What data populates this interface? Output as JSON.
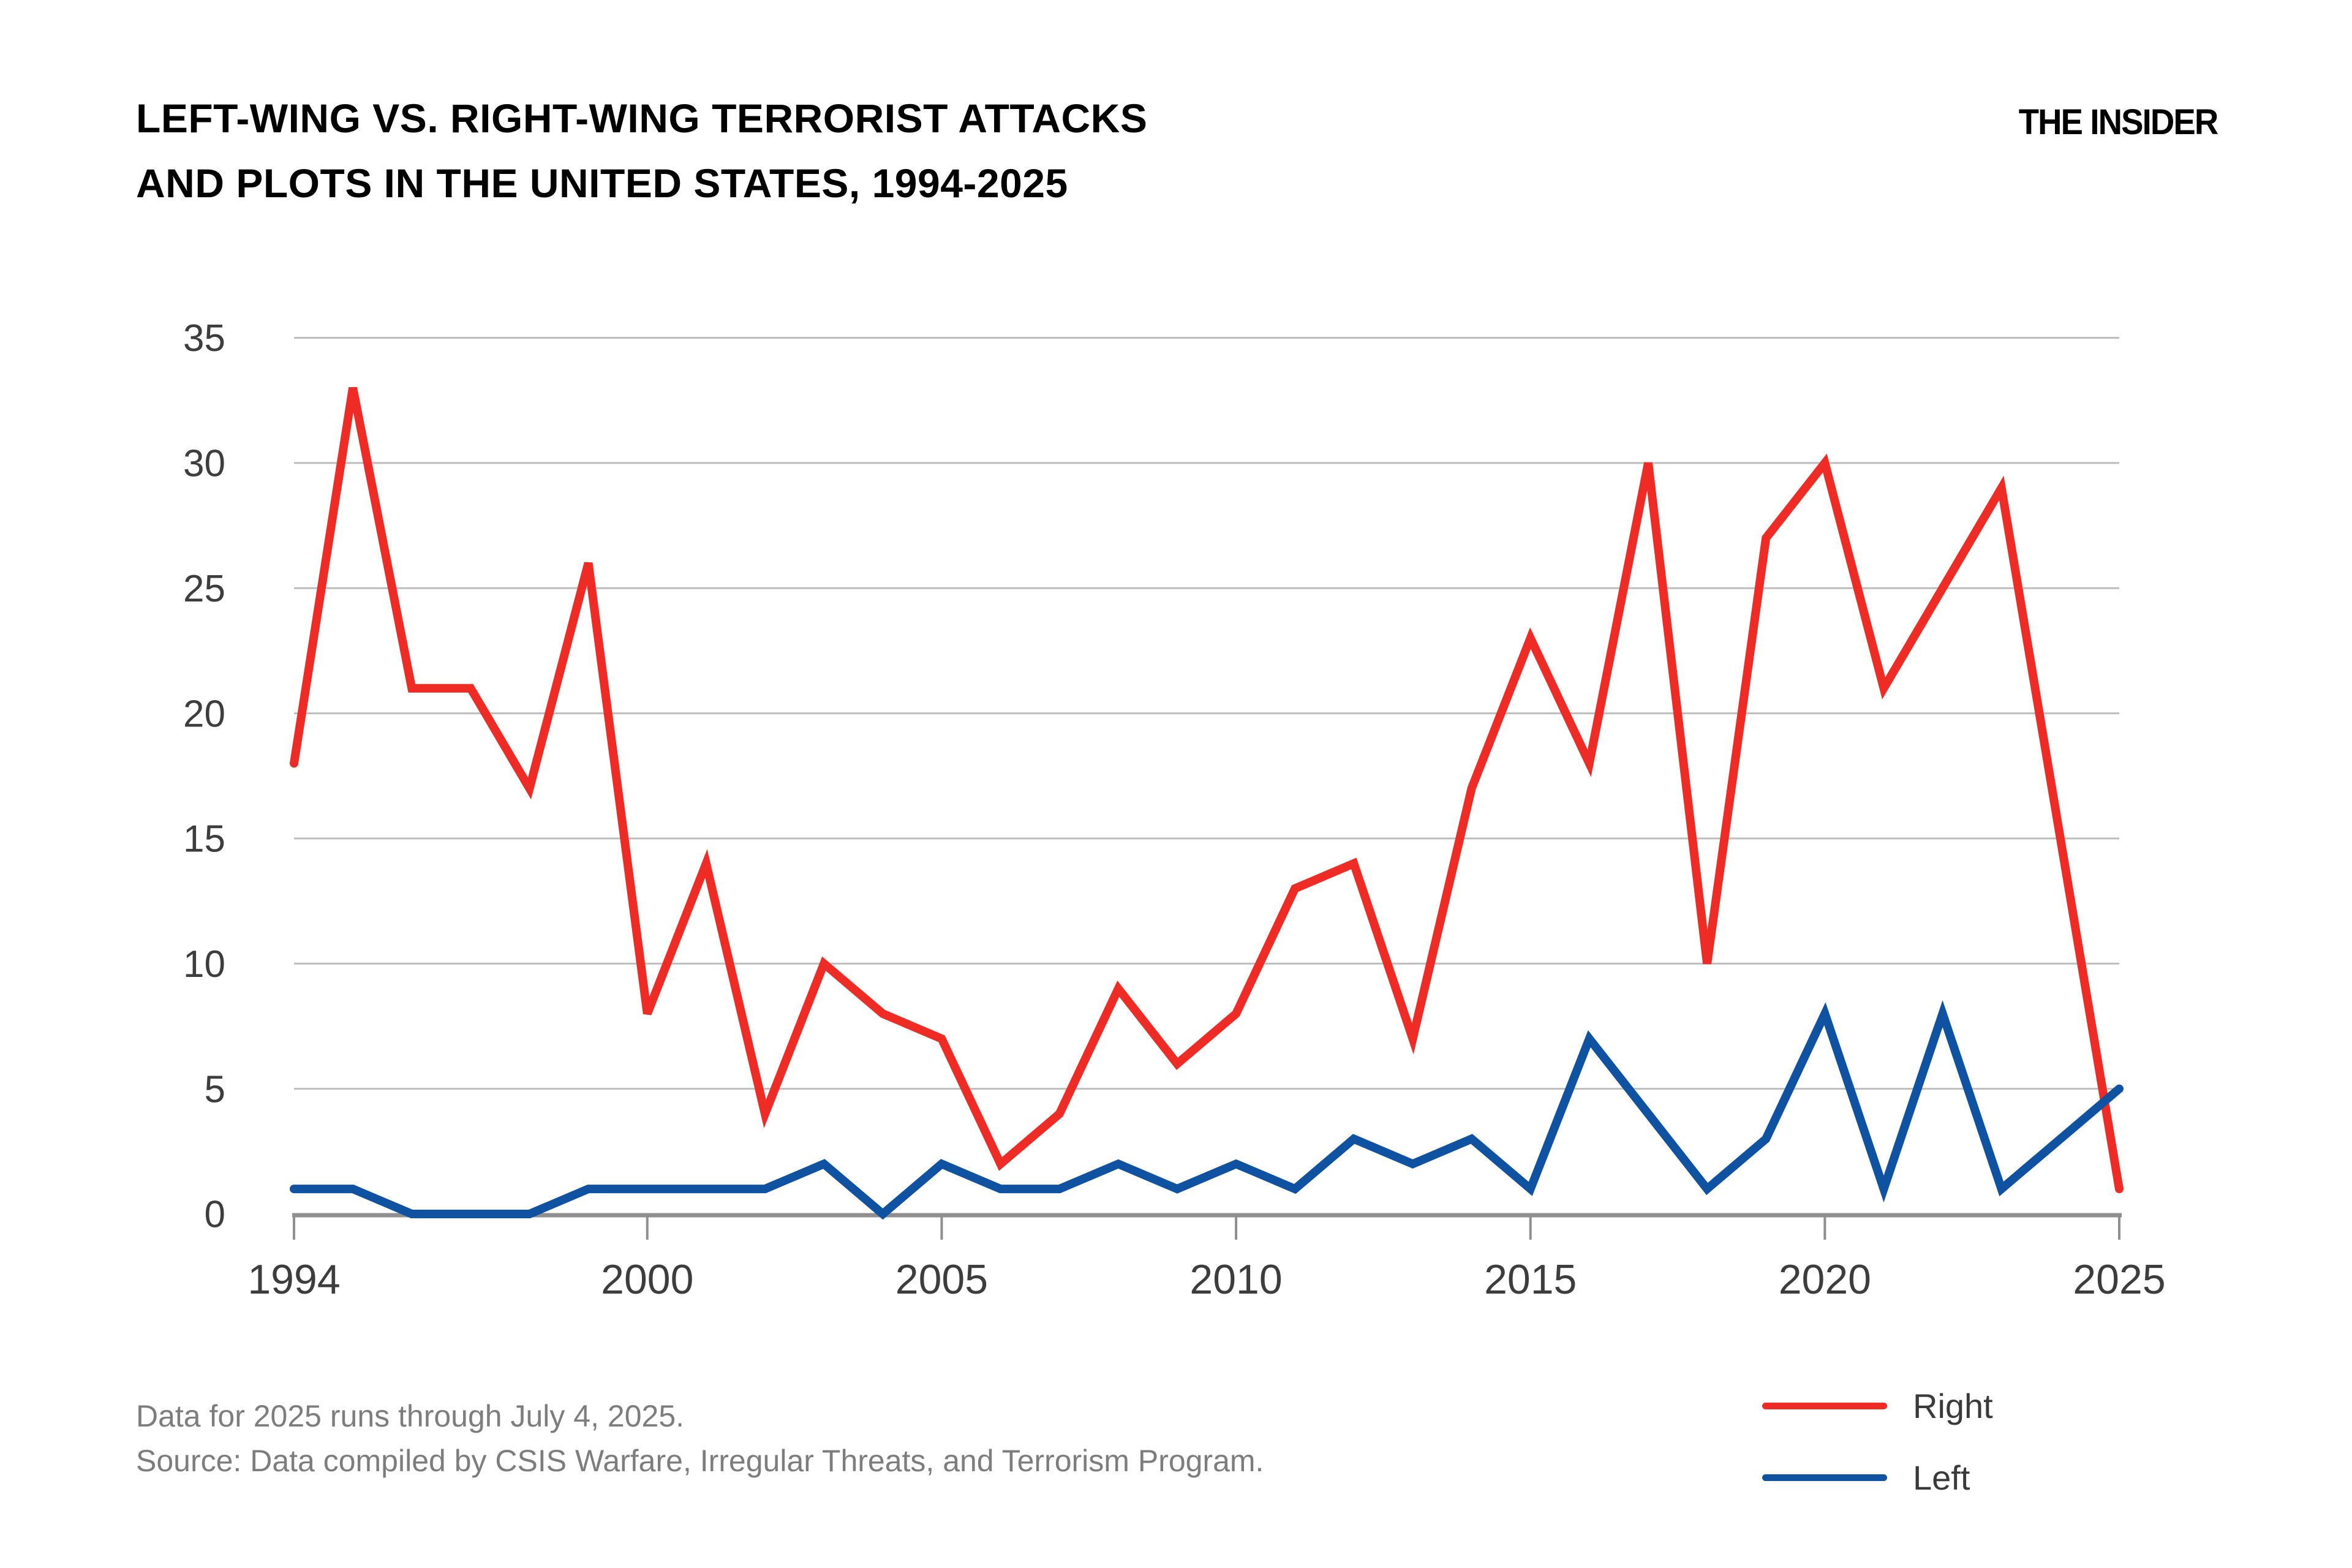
{
  "header": {
    "title_line1": "LEFT-WING VS. RIGHT-WING TERRORIST ATTACKS",
    "title_line2": "AND PLOTS IN THE UNITED STATES, 1994-2025",
    "brand": "THE INSIDER"
  },
  "chart_data": {
    "type": "line",
    "title": "Left-wing vs. right-wing terrorist attacks and plots in the United States, 1994-2025",
    "x": [
      1994,
      1995,
      1996,
      1997,
      1998,
      1999,
      2000,
      2001,
      2002,
      2003,
      2004,
      2005,
      2006,
      2007,
      2008,
      2009,
      2010,
      2011,
      2012,
      2013,
      2014,
      2015,
      2016,
      2017,
      2018,
      2019,
      2020,
      2021,
      2022,
      2023,
      2024,
      2025
    ],
    "series": [
      {
        "name": "Right",
        "color": "#ee2b24",
        "values": [
          18,
          33,
          21,
          21,
          17,
          26,
          8,
          14,
          4,
          10,
          8,
          7,
          2,
          4,
          9,
          6,
          8,
          13,
          14,
          7,
          17,
          23,
          18,
          30,
          10,
          27,
          30,
          21,
          25,
          29,
          15,
          1
        ]
      },
      {
        "name": "Left",
        "color": "#0e52a1",
        "values": [
          1,
          1,
          0,
          0,
          0,
          1,
          1,
          1,
          1,
          2,
          0,
          2,
          1,
          1,
          2,
          1,
          2,
          1,
          3,
          2,
          3,
          1,
          7,
          4,
          1,
          3,
          8,
          1,
          8,
          1,
          3,
          5
        ]
      }
    ],
    "xlabel": "",
    "ylabel": "",
    "ylim": [
      0,
      35
    ],
    "xlim": [
      1994,
      2025
    ],
    "y_ticks": [
      0,
      5,
      10,
      15,
      20,
      25,
      30,
      35
    ],
    "x_ticks": [
      1994,
      2000,
      2005,
      2010,
      2015,
      2020,
      2025
    ],
    "grid": "horizontal",
    "legend_position": "bottom-right",
    "grid_color": "#bdbdbd",
    "axis_color": "#8f8f8f",
    "tick_label_color": "#3d3d3d"
  },
  "footnotes": {
    "line1": "Data for 2025 runs through July 4, 2025.",
    "line2": "Source: Data compiled by CSIS Warfare, Irregular Threats, and Terrorism Program."
  }
}
